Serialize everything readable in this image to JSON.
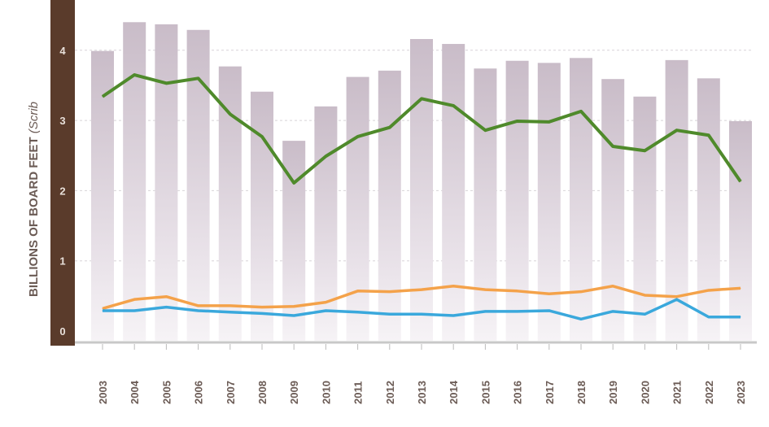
{
  "chart_data": {
    "type": "bar",
    "title": "",
    "ylabel": "BILLIONS OF BOARD FEET",
    "ylabel_suffix": "(Scrib",
    "xlabel": "",
    "ylim": [
      0,
      4.6
    ],
    "yticks": [
      "0",
      "1",
      "2",
      "3",
      "4"
    ],
    "grid": true,
    "categories": [
      "2003",
      "2004",
      "2005",
      "2006",
      "2007",
      "2008",
      "2009",
      "2010",
      "2011",
      "2012",
      "2013",
      "2014",
      "2015",
      "2016",
      "2017",
      "2018",
      "2019",
      "2020",
      "2021",
      "2022",
      "2023"
    ],
    "bars": {
      "color": "#cbbfca",
      "values": [
        3.99,
        4.4,
        4.37,
        4.29,
        3.77,
        3.41,
        2.71,
        3.2,
        3.62,
        3.71,
        4.16,
        4.09,
        3.74,
        3.85,
        3.82,
        3.89,
        3.59,
        3.34,
        3.86,
        3.6,
        2.99
      ]
    },
    "series": [
      {
        "type": "line",
        "color": "#4f8a2b",
        "values": [
          3.34,
          3.65,
          3.53,
          3.6,
          3.09,
          2.77,
          2.11,
          2.49,
          2.77,
          2.9,
          3.31,
          3.21,
          2.86,
          2.99,
          2.98,
          3.13,
          2.63,
          2.57,
          2.86,
          2.79,
          2.13
        ]
      },
      {
        "type": "line",
        "color": "#f4a24a",
        "values": [
          0.32,
          0.45,
          0.49,
          0.36,
          0.36,
          0.34,
          0.35,
          0.41,
          0.57,
          0.56,
          0.59,
          0.64,
          0.59,
          0.57,
          0.53,
          0.56,
          0.64,
          0.51,
          0.49,
          0.58,
          0.61
        ]
      },
      {
        "type": "line",
        "color": "#3aa8dc",
        "values": [
          0.29,
          0.29,
          0.34,
          0.29,
          0.27,
          0.25,
          0.22,
          0.29,
          0.27,
          0.24,
          0.24,
          0.22,
          0.28,
          0.28,
          0.29,
          0.17,
          0.28,
          0.24,
          0.45,
          0.2,
          0.2
        ]
      }
    ],
    "axis_band_color": "#5a3b2b"
  }
}
